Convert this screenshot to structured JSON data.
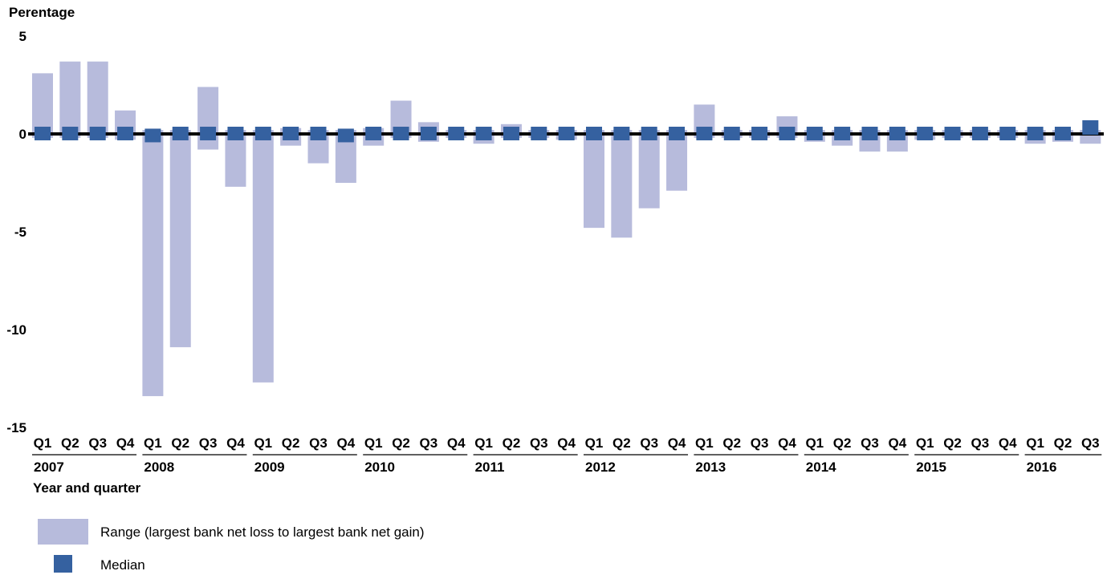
{
  "chart_data": {
    "type": "bar",
    "ylabel": "Perentage",
    "xlabel": "Year and quarter",
    "ylim": [
      -15,
      5
    ],
    "yticks": [
      5,
      0,
      -5,
      -10,
      -15
    ],
    "years": [
      "2007",
      "2008",
      "2009",
      "2010",
      "2011",
      "2012",
      "2013",
      "2014",
      "2015",
      "2016"
    ],
    "quarters": [
      "Q1",
      "Q2",
      "Q3",
      "Q4"
    ],
    "categories": [
      "2007 Q1",
      "2007 Q2",
      "2007 Q3",
      "2007 Q4",
      "2008 Q1",
      "2008 Q2",
      "2008 Q3",
      "2008 Q4",
      "2009 Q1",
      "2009 Q2",
      "2009 Q3",
      "2009 Q4",
      "2010 Q1",
      "2010 Q2",
      "2010 Q3",
      "2010 Q4",
      "2011 Q1",
      "2011 Q2",
      "2011 Q3",
      "2011 Q4",
      "2012 Q1",
      "2012 Q2",
      "2012 Q3",
      "2012 Q4",
      "2013 Q1",
      "2013 Q2",
      "2013 Q3",
      "2013 Q4",
      "2014 Q1",
      "2014 Q2",
      "2014 Q3",
      "2014 Q4",
      "2015 Q1",
      "2015 Q2",
      "2015 Q3",
      "2015 Q4",
      "2016 Q1",
      "2016 Q2",
      "2016 Q3"
    ],
    "series": [
      {
        "name": "Range (largest bank net loss to largest bank net gain)",
        "color": "#b7bbdc",
        "low": [
          -0.2,
          -0.2,
          -0.2,
          -0.3,
          -13.4,
          -10.9,
          -0.8,
          -2.7,
          -12.7,
          -0.6,
          -1.5,
          -2.5,
          -0.6,
          -0.2,
          -0.4,
          -0.2,
          -0.5,
          -0.2,
          -0.2,
          -0.3,
          -4.8,
          -5.3,
          -3.8,
          -2.9,
          -0.2,
          -0.2,
          -0.2,
          -0.2,
          -0.4,
          -0.6,
          -0.9,
          -0.9,
          -0.3,
          -0.2,
          -0.2,
          -0.2,
          -0.5,
          -0.4,
          -0.5
        ],
        "high": [
          3.1,
          3.7,
          3.7,
          1.2,
          0.2,
          0.2,
          2.4,
          0.2,
          0.2,
          0.3,
          0.2,
          0.2,
          0.3,
          1.7,
          0.6,
          0.2,
          0.2,
          0.5,
          0.2,
          0.2,
          0.2,
          0.2,
          0.2,
          0.2,
          1.5,
          0.2,
          0.2,
          0.9,
          0.2,
          0.2,
          0.2,
          0.2,
          0.2,
          0.2,
          0.2,
          0.2,
          0.2,
          0.2,
          0.2
        ]
      },
      {
        "name": "Median",
        "color": "#3561a0",
        "values": [
          0.0,
          0.0,
          0.0,
          0.0,
          -0.1,
          0.0,
          0.0,
          0.0,
          0.0,
          0.0,
          0.0,
          -0.1,
          0.0,
          0.0,
          0.0,
          0.0,
          0.0,
          0.0,
          0.0,
          0.0,
          0.0,
          0.0,
          0.0,
          0.0,
          0.0,
          0.0,
          0.0,
          0.0,
          0.0,
          0.0,
          0.0,
          0.0,
          0.0,
          0.0,
          0.0,
          0.0,
          0.0,
          0.0,
          0.7
        ]
      }
    ],
    "legend_position": "bottom-left",
    "grid": false
  }
}
